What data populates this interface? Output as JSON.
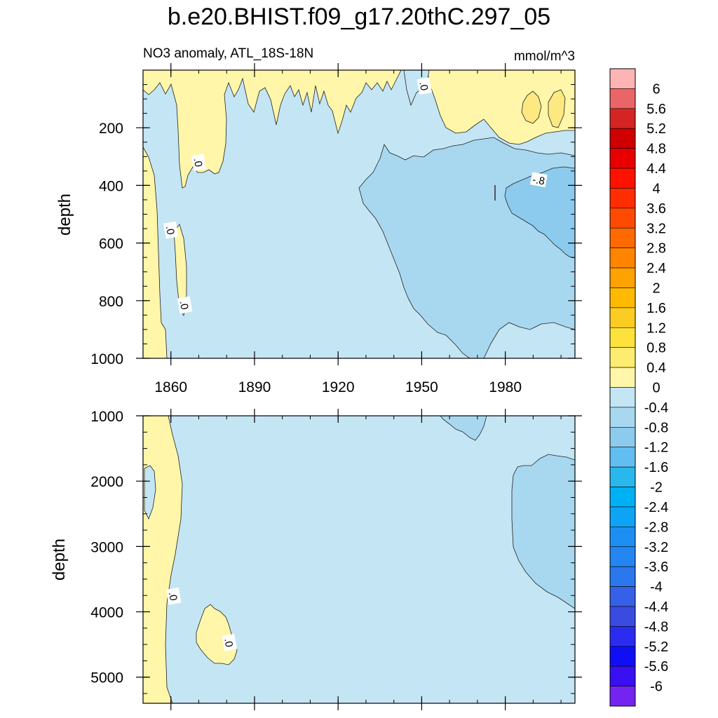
{
  "title": "b.e20.BHIST.f09_g17.20thC.297_05",
  "panel_top": {
    "left_label": "NO3 anomaly, ATL_18S-18N",
    "right_label": "mmol/m^3",
    "ylabel": "depth"
  },
  "panel_bottom": {
    "ylabel": "depth"
  },
  "colors": {
    "background_neg04": "#c4e5f4",
    "neg08": "#a8d8ef",
    "neg12": "#8ccbee",
    "pos04": "#fff6a9",
    "pos08": "#fde882",
    "contour": "#222222"
  },
  "chart_data": [
    {
      "type": "contour",
      "panel": "top",
      "title": "NO3 anomaly, ATL_18S-18N",
      "units": "mmol/m^3",
      "xlabel": "",
      "ylabel": "depth",
      "xlim": [
        1850,
        2005
      ],
      "ylim": [
        1000,
        0
      ],
      "x_ticks": [
        1860,
        1890,
        1920,
        1950,
        1980
      ],
      "x_tick_labels": [
        "1860",
        "1890",
        "1920",
        "1950",
        "1980"
      ],
      "y_ticks": [
        200,
        400,
        600,
        800,
        1000
      ],
      "y_tick_labels": [
        "200",
        "400",
        "600",
        "800",
        "1000"
      ],
      "contour_labels": [
        {
          "text": ".0",
          "x": 1951,
          "depth": 55
        },
        {
          "text": ".0",
          "x": 1870,
          "depth": 320
        },
        {
          "text": ".0",
          "x": 1860,
          "depth": 555
        },
        {
          "text": ".0",
          "x": 1865,
          "depth": 815
        },
        {
          "text": "-.8",
          "x": 1992,
          "depth": 380
        }
      ]
    },
    {
      "type": "contour",
      "panel": "bottom",
      "xlim": [
        1850,
        2005
      ],
      "ylim": [
        5400,
        1000
      ],
      "x_ticks": [
        1860,
        1890,
        1920,
        1950,
        1980
      ],
      "y_ticks": [
        1000,
        2000,
        3000,
        4000,
        5000
      ],
      "y_tick_labels": [
        "1000",
        "2000",
        "3000",
        "4000",
        "5000"
      ],
      "ylabel": "depth",
      "contour_labels": [
        {
          "text": ".0",
          "x": 1861,
          "depth": 3760
        },
        {
          "text": ".0",
          "x": 1881,
          "depth": 4470
        }
      ]
    },
    {
      "type": "colorbar",
      "levels": [
        "6",
        "5.6",
        "5.2",
        "4.8",
        "4.4",
        "4",
        "3.6",
        "3.2",
        "2.8",
        "2.4",
        "2",
        "1.6",
        "1.2",
        "0.8",
        "0.4",
        "0",
        "-0.4",
        "-0.8",
        "-1.2",
        "-1.6",
        "-2",
        "-2.4",
        "-2.8",
        "-3.2",
        "-3.6",
        "-4",
        "-4.4",
        "-4.8",
        "-5.2",
        "-5.6",
        "-6"
      ],
      "colors": [
        "#feb3b4",
        "#ea6567",
        "#d42424",
        "#d00000",
        "#e80000",
        "#ff1100",
        "#ff2d00",
        "#ff4a00",
        "#ff6a00",
        "#ff8500",
        "#ffa200",
        "#ffb900",
        "#fbcc22",
        "#fde23c",
        "#fdec6f",
        "#fff6a9",
        "#c4e5f4",
        "#a8d8ef",
        "#8ccbee",
        "#62bef0",
        "#2ab7ee",
        "#00b0f5",
        "#0ea4f5",
        "#1e8ff2",
        "#2386f1",
        "#2a77ee",
        "#3660e8",
        "#3c4bdf",
        "#2a2df0",
        "#0f0ff5",
        "#3810f2",
        "#7424f0"
      ]
    }
  ]
}
